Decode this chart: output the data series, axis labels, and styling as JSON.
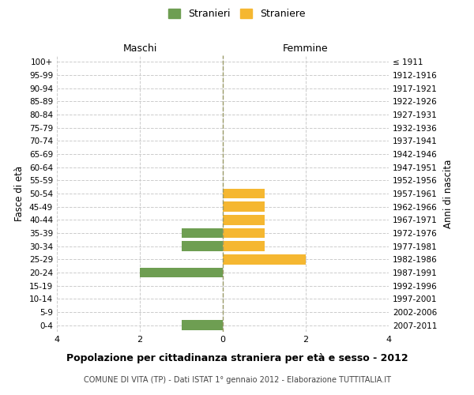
{
  "age_groups": [
    "100+",
    "95-99",
    "90-94",
    "85-89",
    "80-84",
    "75-79",
    "70-74",
    "65-69",
    "60-64",
    "55-59",
    "50-54",
    "45-49",
    "40-44",
    "35-39",
    "30-34",
    "25-29",
    "20-24",
    "15-19",
    "10-14",
    "5-9",
    "0-4"
  ],
  "birth_years": [
    "≤ 1911",
    "1912-1916",
    "1917-1921",
    "1922-1926",
    "1927-1931",
    "1932-1936",
    "1937-1941",
    "1942-1946",
    "1947-1951",
    "1952-1956",
    "1957-1961",
    "1962-1966",
    "1967-1971",
    "1972-1976",
    "1977-1981",
    "1982-1986",
    "1987-1991",
    "1992-1996",
    "1997-2001",
    "2002-2006",
    "2007-2011"
  ],
  "maschi": [
    0,
    0,
    0,
    0,
    0,
    0,
    0,
    0,
    0,
    0,
    0,
    0,
    0,
    1,
    1,
    0,
    2,
    0,
    0,
    0,
    1
  ],
  "femmine": [
    0,
    0,
    0,
    0,
    0,
    0,
    0,
    0,
    0,
    0,
    1,
    1,
    1,
    1,
    1,
    2,
    0,
    0,
    0,
    0,
    0
  ],
  "color_maschi": "#6e9e52",
  "color_femmine": "#f5b731",
  "title": "Popolazione per cittadinanza straniera per età e sesso - 2012",
  "subtitle": "COMUNE DI VITA (TP) - Dati ISTAT 1° gennaio 2012 - Elaborazione TUTTITALIA.IT",
  "label_maschi": "Maschi",
  "label_femmine": "Femmine",
  "ylabel_left": "Fasce di età",
  "ylabel_right": "Anni di nascita",
  "legend_stranieri": "Stranieri",
  "legend_straniere": "Straniere",
  "xlim": 4,
  "background_color": "#ffffff",
  "grid_color": "#cccccc",
  "grid_linestyle": "--"
}
